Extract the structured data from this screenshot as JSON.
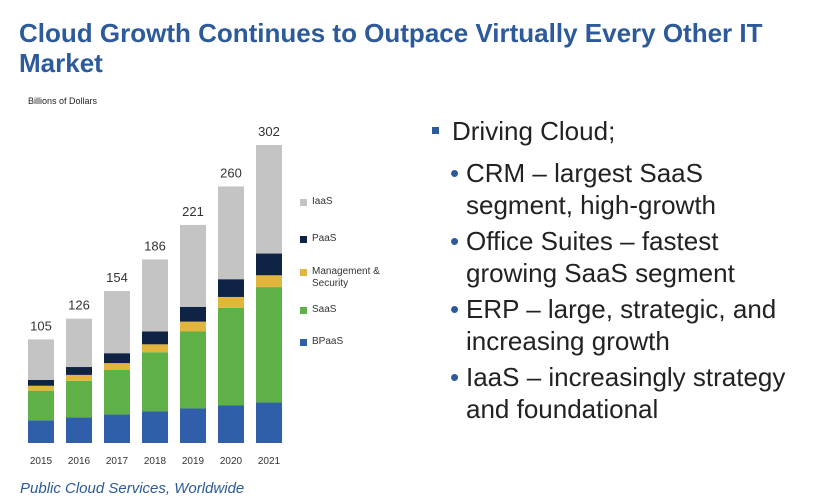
{
  "title": "Cloud Growth Continues to Outpace Virtually Every Other IT Market",
  "unit_label": "Billions of Dollars",
  "source_note": "Public Cloud Services, Worldwide",
  "bullets": {
    "main": "Driving Cloud;",
    "items": [
      "CRM – largest SaaS segment, high-growth",
      "Office Suites – fastest growing SaaS segment",
      "ERP – large, strategic, and increasing growth",
      "IaaS – increasingly strategy and foundational"
    ]
  },
  "chart_data": {
    "type": "bar",
    "stacked": true,
    "categories": [
      "2015",
      "2016",
      "2017",
      "2018",
      "2019",
      "2020",
      "2021"
    ],
    "totals": [
      "105",
      "126",
      "154",
      "186",
      "221",
      "260",
      "302"
    ],
    "series": [
      {
        "name": "BPaaS",
        "color": "#2e5fa8",
        "values": [
          23,
          26,
          29,
          32,
          35,
          38,
          41
        ]
      },
      {
        "name": "SaaS",
        "color": "#5fb046",
        "values": [
          30,
          37,
          45,
          60,
          78,
          99,
          117
        ]
      },
      {
        "name": "Management & Security",
        "color": "#e2b53c",
        "values": [
          5,
          6,
          7,
          8,
          10,
          11,
          12
        ]
      },
      {
        "name": "PaaS",
        "color": "#0f2345",
        "values": [
          6,
          8,
          10,
          13,
          15,
          18,
          22
        ]
      },
      {
        "name": "IaaS",
        "color": "#c4c4c4",
        "values": [
          41,
          49,
          63,
          73,
          83,
          94,
          110
        ]
      }
    ],
    "legend_order": [
      "IaaS",
      "PaaS",
      "Management & Security",
      "SaaS",
      "BPaaS"
    ],
    "legend_position": "right",
    "ylim": [
      0,
      302
    ],
    "grid": false
  }
}
